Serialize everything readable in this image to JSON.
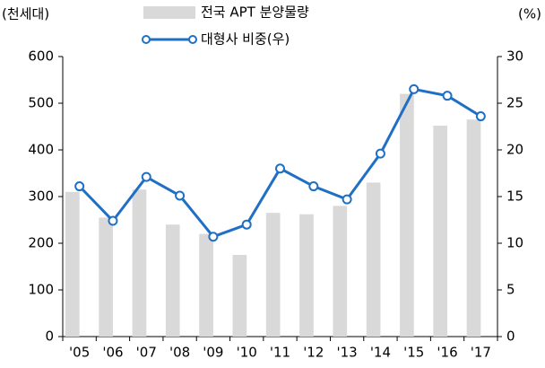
{
  "chart_data": {
    "type": "bar",
    "y_unit_label": "(천세대)",
    "y2_unit_label": "(%)",
    "categories": [
      "'05",
      "'06",
      "'07",
      "'08",
      "'09",
      "'10",
      "'11",
      "'12",
      "'13",
      "'14",
      "'15",
      "'16",
      "'17"
    ],
    "series": [
      {
        "name": "전국 APT 분양물량",
        "color": "#d9d9d9",
        "type": "bar",
        "values": [
          310,
          255,
          315,
          240,
          220,
          175,
          265,
          262,
          280,
          330,
          520,
          452,
          465
        ]
      },
      {
        "name": "대형사 비중(우)",
        "color": "#1f6fc5",
        "type": "line",
        "axis": "y2",
        "values": [
          16.1,
          12.4,
          17.1,
          15.1,
          10.7,
          12.0,
          18.0,
          16.1,
          14.7,
          19.6,
          26.5,
          25.8,
          23.6
        ]
      }
    ],
    "ylim": [
      0,
      600
    ],
    "yticks": [
      0,
      100,
      200,
      300,
      400,
      500,
      600
    ],
    "y2lim": [
      0,
      30
    ],
    "y2ticks": [
      0,
      5,
      10,
      15,
      20,
      25,
      30
    ],
    "grid": false
  }
}
